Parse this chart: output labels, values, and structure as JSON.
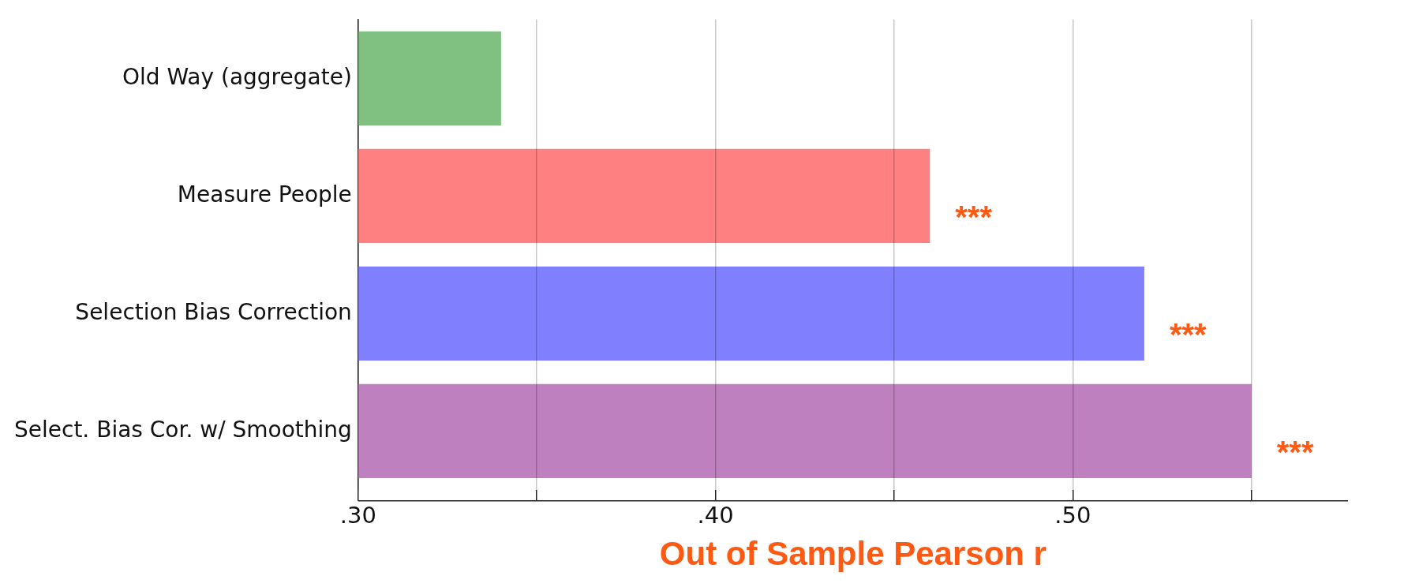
{
  "chart_data": {
    "type": "bar",
    "orientation": "horizontal",
    "xlabel": "Out of Sample Pearson r",
    "categories": [
      "Old Way (aggregate)",
      "Measure People",
      "Selection Bias Correction",
      "Select. Bias Cor. w/ Smoothing"
    ],
    "values": [
      0.34,
      0.46,
      0.52,
      0.55
    ],
    "colors": [
      "#80c080",
      "#ff8080",
      "#8080ff",
      "#bf80bf"
    ],
    "xlim": [
      0.3,
      0.577
    ],
    "xticks": [
      {
        "value": 0.3,
        "label": ".30"
      },
      {
        "value": 0.35,
        "label": null
      },
      {
        "value": 0.4,
        "label": ".40"
      },
      {
        "value": 0.45,
        "label": null
      },
      {
        "value": 0.5,
        "label": ".50"
      },
      {
        "value": 0.55,
        "label": null
      }
    ],
    "grid": "x",
    "legend": false,
    "annotations": [
      {
        "text": "***",
        "x": 0.46,
        "y": "Measure People"
      },
      {
        "text": "***",
        "x": 0.52,
        "y": "Selection Bias Correction"
      },
      {
        "text": "***",
        "x": 0.55,
        "y": "Select. Bias Cor. w/ Smoothing"
      }
    ]
  }
}
